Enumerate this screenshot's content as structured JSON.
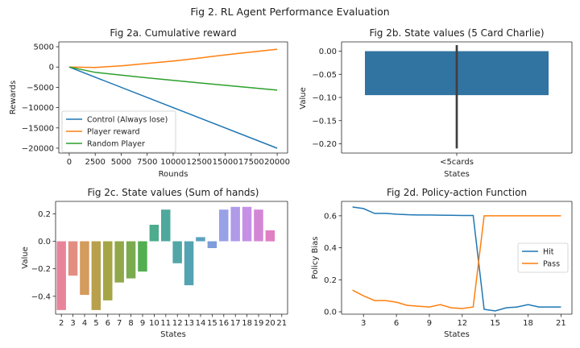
{
  "suptitle": "Fig 2. RL Agent Performance Evaluation",
  "chart_data": [
    {
      "id": "2a",
      "type": "line",
      "title": "Fig 2a. Cumulative reward",
      "xlabel": "Rounds",
      "ylabel": "Rewards",
      "xlim": [
        -1000,
        21000
      ],
      "ylim": [
        -21200,
        6200
      ],
      "xticks": [
        0,
        2500,
        5000,
        7500,
        10000,
        12500,
        15000,
        17500,
        20000
      ],
      "yticks": [
        5000,
        0,
        -5000,
        -10000,
        -15000,
        -20000
      ],
      "legend": "lower-left",
      "series": [
        {
          "name": "Control (Always lose)",
          "color": "#1f77b4",
          "x": [
            0,
            20000
          ],
          "y": [
            0,
            -20000
          ]
        },
        {
          "name": "Player reward",
          "color": "#ff7f0e",
          "x": [
            0,
            2500,
            5000,
            7500,
            10000,
            12500,
            15000,
            17500,
            20000
          ],
          "y": [
            0,
            -100,
            300,
            900,
            1500,
            2200,
            3000,
            3700,
            4400
          ]
        },
        {
          "name": "Random Player",
          "color": "#2ca02c",
          "x": [
            0,
            2500,
            5000,
            7500,
            10000,
            12500,
            15000,
            17500,
            20000
          ],
          "y": [
            0,
            -1300,
            -2000,
            -2650,
            -3300,
            -3900,
            -4500,
            -5100,
            -5700
          ]
        }
      ]
    },
    {
      "id": "2b",
      "type": "bar",
      "title": "Fig 2b. State values (5 Card Charlie)",
      "xlabel": "States",
      "ylabel": "Value",
      "categories": [
        "<5cards"
      ],
      "values": [
        -0.095
      ],
      "error": [
        [
          -0.21,
          0.013
        ]
      ],
      "color": "#3274a1",
      "ylim": [
        -0.22,
        0.02
      ],
      "yticks": [
        0.0,
        -0.05,
        -0.1,
        -0.15,
        -0.2
      ],
      "ytick_labels": [
        "0.00",
        "−0.05",
        "−0.10",
        "−0.15",
        "−0.20"
      ]
    },
    {
      "id": "2c",
      "type": "bar",
      "title": "Fig 2c. State values (Sum of hands)",
      "xlabel": "States",
      "ylabel": "Value",
      "categories": [
        "2",
        "3",
        "4",
        "5",
        "6",
        "7",
        "8",
        "9",
        "10",
        "11",
        "12",
        "13",
        "14",
        "15",
        "16",
        "17",
        "18",
        "19",
        "20",
        "21"
      ],
      "values": [
        -0.5,
        -0.25,
        -0.39,
        -0.5,
        -0.43,
        -0.3,
        -0.27,
        -0.22,
        0.12,
        0.23,
        -0.16,
        -0.32,
        0.03,
        -0.05,
        0.23,
        0.25,
        0.25,
        0.23,
        0.08,
        0
      ],
      "colors": [
        "#e8849a",
        "#e28f81",
        "#d39b5c",
        "#b8a04d",
        "#a5a545",
        "#91a84a",
        "#7aab4f",
        "#53ae51",
        "#4dab8e",
        "#4fa89e",
        "#52a6a8",
        "#54a3b2",
        "#5aa1c0",
        "#7e9ddb",
        "#98a0e6",
        "#b09be8",
        "#c690e5",
        "#d486d6",
        "#e07fc3",
        "#e884b0"
      ],
      "ylim": [
        -0.53,
        0.29
      ],
      "yticks": [
        0.2,
        0.0,
        -0.2,
        -0.4
      ],
      "ytick_labels": [
        "0.2",
        "0.0",
        "−0.2",
        "−0.4"
      ]
    },
    {
      "id": "2d",
      "type": "line",
      "title": "Fig 2d. Policy-action Function",
      "xlabel": "States",
      "ylabel": "Policy Bias",
      "xlim": [
        1,
        22
      ],
      "ylim": [
        -0.015,
        0.69
      ],
      "xticks": [
        3,
        6,
        9,
        12,
        15,
        18,
        21
      ],
      "yticks": [
        0.0,
        0.2,
        0.4,
        0.6
      ],
      "ytick_labels": [
        "0.0",
        "0.2",
        "0.4",
        "0.6"
      ],
      "legend": "center-right",
      "series": [
        {
          "name": "Hit",
          "color": "#1f77b4",
          "x": [
            2,
            3,
            4,
            5,
            6,
            7,
            8,
            9,
            10,
            11,
            12,
            13,
            14,
            15,
            16,
            17,
            18,
            19,
            20,
            21
          ],
          "y": [
            0.655,
            0.645,
            0.615,
            0.615,
            0.61,
            0.607,
            0.605,
            0.605,
            0.604,
            0.603,
            0.602,
            0.602,
            0.015,
            0.005,
            0.025,
            0.03,
            0.045,
            0.03,
            0.03,
            0.03
          ]
        },
        {
          "name": "Pass",
          "color": "#ff7f0e",
          "x": [
            2,
            3,
            4,
            5,
            6,
            7,
            8,
            9,
            10,
            11,
            12,
            13,
            14,
            15,
            16,
            17,
            18,
            19,
            20,
            21
          ],
          "y": [
            0.135,
            0.1,
            0.07,
            0.07,
            0.06,
            0.04,
            0.035,
            0.03,
            0.045,
            0.025,
            0.02,
            0.03,
            0.6,
            0.6,
            0.6,
            0.6,
            0.6,
            0.6,
            0.6,
            0.6
          ]
        }
      ]
    }
  ]
}
